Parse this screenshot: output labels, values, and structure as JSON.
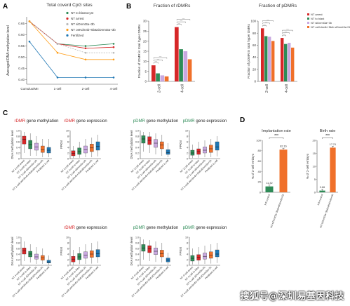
{
  "panels": {
    "A": {
      "letter": "A"
    },
    "B": {
      "letter": "B"
    },
    "C": {
      "letter": "C"
    },
    "D": {
      "letter": "D"
    }
  },
  "sig_labels": {
    "three_star": "***",
    "dash": "—"
  },
  "watermark": "搜狐号@深圳易基因科技",
  "colors": {
    "nt_blastocyst": "#2e8b57",
    "nt_arrest": "#d62728",
    "nt_sidnmt": "#bbbbbb",
    "nt_oekdm": "#ff9f1a",
    "fertilized": "#1f77b4",
    "violet": "#c9a8e0",
    "orange": "#f0702a",
    "green_d": "#2e8b57"
  },
  "chart_data": [
    {
      "id": "A",
      "type": "line",
      "title": "Total coverd CpG sites",
      "xlabel": "",
      "ylabel": "Averaged DNA methylation level",
      "x": [
        "Cumulus/MII",
        "1-cell",
        "2-cell",
        "4-cell"
      ],
      "ylim": [
        0.38,
        0.68
      ],
      "yticks": [
        "0.40",
        "0.45",
        "0.50",
        "0.55",
        "0.60",
        "0.65"
      ],
      "legend_position": "top-right",
      "series": [
        {
          "name": "NT to blastocyst",
          "color": "#2e8b57",
          "values": [
            0.66,
            0.56,
            0.55,
            0.56
          ]
        },
        {
          "name": "NT arrest",
          "color": "#d62728",
          "values": [
            0.66,
            0.56,
            0.54,
            0.545
          ]
        },
        {
          "name": "NT siDnmt3a+3b",
          "color": "#bbbbbb",
          "values": [
            0.66,
            0.56,
            0.52,
            0.52
          ]
        },
        {
          "name": "NT oeKdm4b+5b&siDnmt3a+3b",
          "color": "#ff9f1a",
          "values": [
            0.66,
            0.52,
            0.49,
            0.49
          ]
        },
        {
          "name": "Fertilized",
          "color": "#1f77b4",
          "values": [
            0.57,
            0.41,
            0.41,
            0.41
          ]
        }
      ]
    },
    {
      "id": "B1",
      "type": "bar",
      "title": "Fraction of rDMRs",
      "ylabel": "Fraction of rDMR in total hyper DMRs",
      "categories": [
        "2-cell",
        "4-cell"
      ],
      "ylim": [
        0,
        30
      ],
      "yticks": [
        "0",
        "5",
        "10",
        "15",
        "20",
        "25",
        "30"
      ],
      "series": [
        {
          "name": "NT arrest",
          "color": "#d62728",
          "values": [
            8,
            27
          ]
        },
        {
          "name": "NT siDnmt3a+3b",
          "color": "#2e8b57",
          "values": [
            4,
            16
          ]
        },
        {
          "name": "NT oeKdm4b+5b&siDnmt3a+3b",
          "color": "#c9a8e0",
          "values": [
            3,
            15
          ]
        },
        {
          "name": "Fertilized",
          "color": "#f0702a",
          "values": [
            2.5,
            11
          ]
        }
      ]
    },
    {
      "id": "B2",
      "type": "bar",
      "title": "Fraction of pDMRs",
      "ylabel": "Fraction of pDMR in total hyper DMRs",
      "categories": [
        "2-cell",
        "4-cell"
      ],
      "ylim": [
        0,
        100
      ],
      "yticks": [
        "0",
        "20",
        "40",
        "60",
        "80",
        "100"
      ],
      "legend_position": "top-right",
      "series": [
        {
          "name": "NT arrest",
          "color": "#d62728",
          "values": [
            88,
            72
          ]
        },
        {
          "name": "NT to blast",
          "color": "#2e8b57",
          "values": [
            75,
            62
          ]
        },
        {
          "name": "NT siDnmt3a+3b",
          "color": "#c9a8e0",
          "values": [
            74,
            64
          ]
        },
        {
          "name": "NT oeKdm4b+5b& siDnmt3a+3b",
          "color": "#f0702a",
          "values": [
            67,
            56
          ]
        }
      ]
    },
    {
      "id": "C1",
      "type": "box",
      "title_colored": "rDMR",
      "title_rest": " gene methylation",
      "title_color": "#d62728",
      "ylabel": "DNA methylation level",
      "ylim": [
        0,
        1
      ],
      "yticks": [
        "0",
        "0.2",
        "0.4",
        "0.6",
        "0.8",
        "1.0"
      ],
      "categories": [
        "NT 2-cell arrest",
        "NT 2-cell to blast",
        "NT 2-cell siDnmt3a+3b",
        "NT 2-cell oeKdm4b+5b&siDnmt3a+3b",
        "Fertilized 2-cell"
      ],
      "boxes": [
        {
          "color": "#d62728",
          "q1": 0.52,
          "median": 0.68,
          "q3": 0.8,
          "min": 0.2,
          "max": 0.95
        },
        {
          "color": "#2e8b57",
          "q1": 0.35,
          "median": 0.5,
          "q3": 0.65,
          "min": 0.1,
          "max": 0.9
        },
        {
          "color": "#c9a8e0",
          "q1": 0.3,
          "median": 0.42,
          "q3": 0.55,
          "min": 0.1,
          "max": 0.8
        },
        {
          "color": "#f0702a",
          "q1": 0.22,
          "median": 0.32,
          "q3": 0.45,
          "min": 0.05,
          "max": 0.7
        },
        {
          "color": "#1f77b4",
          "q1": 0.2,
          "median": 0.3,
          "q3": 0.4,
          "min": 0.05,
          "max": 0.7
        }
      ]
    },
    {
      "id": "C2",
      "type": "box",
      "title_colored": "rDMR",
      "title_rest": " gene expression",
      "title_color": "#d62728",
      "ylabel": "FPKM",
      "ylim": [
        0,
        10
      ],
      "yticks": [
        "0",
        "2",
        "4",
        "6",
        "8",
        "10"
      ],
      "categories": [
        "NT 2-cell arrest",
        "NT 2-cell to blast",
        "NT 2-cell siDnmt3a+3b",
        "NT 2-cell oeKdm4b+5b&siDnmt3a+3b",
        "Fertilized 2-cell"
      ],
      "boxes": [
        {
          "color": "#d62728",
          "q1": 1.0,
          "median": 1.8,
          "q3": 2.8,
          "min": 0.2,
          "max": 4.5
        },
        {
          "color": "#2e8b57",
          "q1": 1.5,
          "median": 2.5,
          "q3": 3.8,
          "min": 0.3,
          "max": 6.0
        },
        {
          "color": "#c9a8e0",
          "q1": 2.0,
          "median": 3.2,
          "q3": 4.5,
          "min": 0.5,
          "max": 7.0
        },
        {
          "color": "#f0702a",
          "q1": 2.5,
          "median": 3.8,
          "q3": 5.2,
          "min": 0.5,
          "max": 7.5
        },
        {
          "color": "#1f77b4",
          "q1": 3.0,
          "median": 4.3,
          "q3": 6.0,
          "min": 0.8,
          "max": 8.5
        }
      ]
    },
    {
      "id": "C3",
      "type": "box",
      "title_colored": "pDMR",
      "title_rest": " gene methylation",
      "title_color": "#2e8b57",
      "ylabel": "DNA methylation level",
      "ylim": [
        0,
        1
      ],
      "yticks": [
        "0",
        "0.2",
        "0.4",
        "0.6",
        "0.8",
        "1.0"
      ],
      "categories": [
        "NT 2-cell arrest",
        "NT 2-cell to blast",
        "NT 2-cell siDnmt3a+3b",
        "NT 2-cell oeKdm4b+5b&siDnmt3a+3b",
        "Fertilized 2-cell"
      ],
      "boxes": [
        {
          "color": "#2e8b57",
          "q1": 0.55,
          "median": 0.7,
          "q3": 0.82,
          "min": 0.25,
          "max": 0.95
        },
        {
          "color": "#d62728",
          "q1": 0.5,
          "median": 0.65,
          "q3": 0.78,
          "min": 0.2,
          "max": 0.95
        },
        {
          "color": "#c9a8e0",
          "q1": 0.4,
          "median": 0.55,
          "q3": 0.68,
          "min": 0.15,
          "max": 0.9
        },
        {
          "color": "#f0702a",
          "q1": 0.35,
          "median": 0.48,
          "q3": 0.6,
          "min": 0.1,
          "max": 0.85
        },
        {
          "color": "#1f77b4",
          "q1": 0.15,
          "median": 0.22,
          "q3": 0.32,
          "min": 0.05,
          "max": 0.55
        }
      ]
    },
    {
      "id": "C4",
      "type": "box",
      "title_colored": "pDMR",
      "title_rest": " gene expression",
      "title_color": "#2e8b57",
      "ylabel": "FPKM",
      "ylim": [
        0,
        10
      ],
      "yticks": [
        "0",
        "2",
        "4",
        "6",
        "8",
        "10"
      ],
      "categories": [
        "NT 2-cell arrest",
        "NT 2-cell to blast",
        "NT 2-cell siDnmt3a+3b",
        "NT 2-cell oeKdm4b+5b&siDnmt3a+3b",
        "Fertilized 2-cell"
      ],
      "boxes": [
        {
          "color": "#2e8b57",
          "q1": 1.2,
          "median": 2.0,
          "q3": 3.0,
          "min": 0.2,
          "max": 5.0
        },
        {
          "color": "#d62728",
          "q1": 1.5,
          "median": 2.5,
          "q3": 3.5,
          "min": 0.3,
          "max": 6.0
        },
        {
          "color": "#c9a8e0",
          "q1": 2.0,
          "median": 3.0,
          "q3": 4.2,
          "min": 0.5,
          "max": 6.5
        },
        {
          "color": "#f0702a",
          "q1": 2.2,
          "median": 3.5,
          "q3": 4.8,
          "min": 0.5,
          "max": 7.0
        },
        {
          "color": "#1f77b4",
          "q1": 3.0,
          "median": 4.2,
          "q3": 6.0,
          "min": 0.8,
          "max": 8.0
        }
      ]
    },
    {
      "id": "C5",
      "type": "box",
      "title_colored": "",
      "title_rest": "",
      "title_color": "#d62728",
      "ylabel": "DNA methylation level",
      "ylim": [
        0,
        1
      ],
      "yticks": [
        "0",
        "0.2",
        "0.4",
        "0.6",
        "0.8",
        "1.0"
      ],
      "categories": [
        "NT 4-cell arrest",
        "NT 4-cell to blast",
        "NT 4-cell siDnmt3a+3b",
        "NT 4-cell oeKdm4b+5b&siDnmt3a+3b",
        "Fertilized 4-cell"
      ],
      "boxes": [
        {
          "color": "#d62728",
          "q1": 0.4,
          "median": 0.52,
          "q3": 0.62,
          "min": 0.15,
          "max": 0.85
        },
        {
          "color": "#2e8b57",
          "q1": 0.3,
          "median": 0.4,
          "q3": 0.5,
          "min": 0.1,
          "max": 0.75
        },
        {
          "color": "#c9a8e0",
          "q1": 0.22,
          "median": 0.3,
          "q3": 0.4,
          "min": 0.05,
          "max": 0.65
        },
        {
          "color": "#f0702a",
          "q1": 0.18,
          "median": 0.26,
          "q3": 0.35,
          "min": 0.05,
          "max": 0.6
        },
        {
          "color": "#1f77b4",
          "q1": 0.08,
          "median": 0.12,
          "q3": 0.18,
          "min": 0.02,
          "max": 0.35
        }
      ]
    },
    {
      "id": "C6",
      "type": "box",
      "title_colored": "rDMR",
      "title_rest": " gene expression",
      "title_color": "#d62728",
      "ylabel": "FPKM",
      "ylim": [
        0,
        10
      ],
      "yticks": [
        "0",
        "2",
        "4",
        "6",
        "8",
        "10"
      ],
      "categories": [
        "NT 4-cell arrest",
        "NT 4-cell to blast",
        "NT 4-cell siDnmt3a+3b",
        "NT 4-cell oeKdm4b+5b&siDnmt3a+3b",
        "Fertilized 4-cell"
      ],
      "boxes": [
        {
          "color": "#d62728",
          "q1": 1.2,
          "median": 2.2,
          "q3": 3.2,
          "min": 0.2,
          "max": 5.5
        },
        {
          "color": "#2e8b57",
          "q1": 2.0,
          "median": 3.0,
          "q3": 4.2,
          "min": 0.4,
          "max": 6.5
        },
        {
          "color": "#c9a8e0",
          "q1": 2.5,
          "median": 3.6,
          "q3": 4.8,
          "min": 0.5,
          "max": 7.5
        },
        {
          "color": "#f0702a",
          "q1": 2.8,
          "median": 4.0,
          "q3": 5.2,
          "min": 0.6,
          "max": 8.0
        },
        {
          "color": "#1f77b4",
          "q1": 3.0,
          "median": 4.2,
          "q3": 5.6,
          "min": 0.8,
          "max": 8.5
        }
      ]
    },
    {
      "id": "C7",
      "type": "box",
      "title_colored": "pDMR",
      "title_rest": " gene methylation",
      "title_color": "#2e8b57",
      "ylabel": "DNA methylation level",
      "ylim": [
        0,
        1
      ],
      "yticks": [
        "0",
        "0.2",
        "0.4",
        "0.6",
        "0.8",
        "1.0"
      ],
      "categories": [
        "NT 4-cell arrest",
        "NT 4-cell to blast",
        "NT 4-cell siDnmt3a+3b",
        "NT 4-cell oeKdm4b+5b&siDnmt3a+3b",
        "Fertilized 4-cell"
      ],
      "boxes": [
        {
          "color": "#2e8b57",
          "q1": 0.5,
          "median": 0.62,
          "q3": 0.74,
          "min": 0.2,
          "max": 0.92
        },
        {
          "color": "#d62728",
          "q1": 0.45,
          "median": 0.58,
          "q3": 0.7,
          "min": 0.15,
          "max": 0.9
        },
        {
          "color": "#c9a8e0",
          "q1": 0.38,
          "median": 0.5,
          "q3": 0.62,
          "min": 0.12,
          "max": 0.85
        },
        {
          "color": "#f0702a",
          "q1": 0.3,
          "median": 0.42,
          "q3": 0.54,
          "min": 0.1,
          "max": 0.8
        },
        {
          "color": "#1f77b4",
          "q1": 0.12,
          "median": 0.18,
          "q3": 0.26,
          "min": 0.03,
          "max": 0.45
        }
      ]
    },
    {
      "id": "C8",
      "type": "box",
      "title_colored": "pDMR",
      "title_rest": " gene expression",
      "title_color": "#2e8b57",
      "ylabel": "FPKM",
      "ylim": [
        0,
        10
      ],
      "yticks": [
        "0",
        "2",
        "4",
        "6",
        "8",
        "10"
      ],
      "categories": [
        "NT 4-cell arrest",
        "NT 4-cell to blast",
        "NT 4-cell siDnmt3a+3b",
        "NT 4-cell oeKdm4b+5b&siDnmt3a+3b",
        "Fertilized 4-cell"
      ],
      "boxes": [
        {
          "color": "#2e8b57",
          "q1": 1.5,
          "median": 2.5,
          "q3": 3.5,
          "min": 0.3,
          "max": 6.0
        },
        {
          "color": "#d62728",
          "q1": 1.8,
          "median": 2.8,
          "q3": 3.8,
          "min": 0.3,
          "max": 6.5
        },
        {
          "color": "#c9a8e0",
          "q1": 2.2,
          "median": 3.2,
          "q3": 4.4,
          "min": 0.5,
          "max": 7.0
        },
        {
          "color": "#f0702a",
          "q1": 2.5,
          "median": 3.6,
          "q3": 4.8,
          "min": 0.6,
          "max": 7.5
        },
        {
          "color": "#1f77b4",
          "q1": 3.0,
          "median": 4.0,
          "q3": 5.5,
          "min": 0.8,
          "max": 8.0
        }
      ]
    },
    {
      "id": "D1",
      "type": "bar",
      "title": "Implantation rate",
      "ylabel": "% of 2-cell embryo",
      "categories": [
        "NT-control",
        "NT-siDnmt3a+3b&oeKdm4b+5b"
      ],
      "ylim": [
        0,
        100
      ],
      "yticks": [
        "0",
        "20",
        "40",
        "60",
        "80",
        "100"
      ],
      "values": [
        11.32,
        82.16
      ],
      "value_labels": [
        "11.32",
        "82.16"
      ],
      "colors": [
        "#2e8b57",
        "#f0702a"
      ],
      "significance": "***"
    },
    {
      "id": "D2",
      "type": "bar",
      "title": "Birth rate",
      "ylabel": "% of 2-cell embryo",
      "categories": [
        "NT-control",
        "NT-siDnmt3a+3b&oeKdm4b+5b"
      ],
      "ylim": [
        0,
        20
      ],
      "yticks": [
        "0",
        "5",
        "10",
        "15",
        "20"
      ],
      "values": [
        0.66,
        17.21
      ],
      "value_labels": [
        "0.66",
        "17.21"
      ],
      "colors": [
        "#2e8b57",
        "#f0702a"
      ],
      "significance": "***"
    }
  ]
}
